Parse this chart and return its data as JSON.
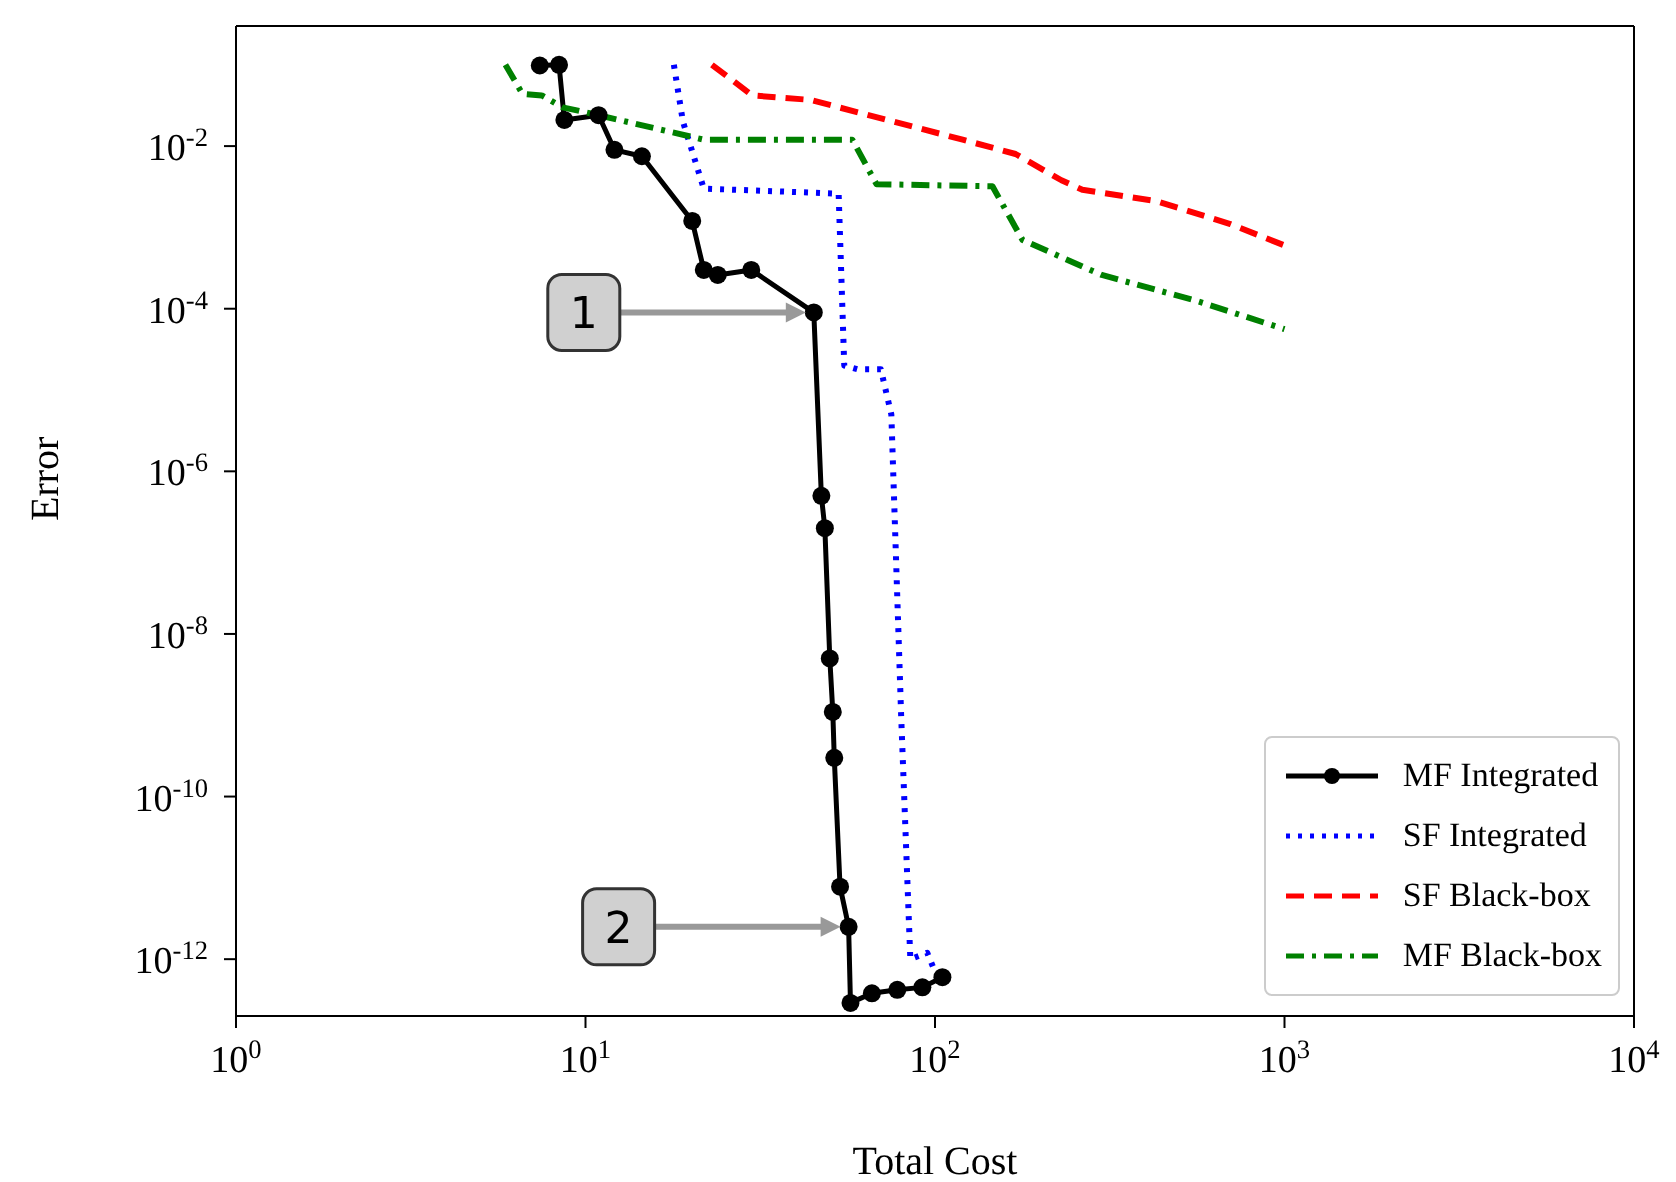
{
  "chart_data": {
    "type": "line",
    "xlabel": "Total Cost",
    "ylabel": "Error",
    "log": "xy",
    "grid": false,
    "legend": "bottom right",
    "xlim": [
      1,
      10000
    ],
    "ylim": [
      2e-13,
      0.3
    ],
    "xticks": [
      {
        "value": 1,
        "label": "10$^{0}$"
      },
      {
        "value": 10,
        "label": "10$^{1}$"
      },
      {
        "value": 100,
        "label": "10$^{2}$"
      },
      {
        "value": 1000,
        "label": "10$^{3}$"
      },
      {
        "value": 10000,
        "label": "10$^{4}$"
      }
    ],
    "yticks": [
      {
        "value": 1e-12,
        "label": "10$^{-12}$"
      },
      {
        "value": 1e-10,
        "label": "10$^{-10}$"
      },
      {
        "value": 1e-08,
        "label": "10$^{-8}$"
      },
      {
        "value": 1e-06,
        "label": "10$^{-6}$"
      },
      {
        "value": 0.0001,
        "label": "10$^{-4}$"
      },
      {
        "value": 0.01,
        "label": "10$^{-2}$"
      }
    ],
    "series": [
      {
        "name": "MF Integrated",
        "color": "#000000",
        "line_style": "solid",
        "marker": "circle",
        "x": [
          7.4,
          8.4,
          8.7,
          10.9,
          12.1,
          14.5,
          20.2,
          21.8,
          23.9,
          29.8,
          45,
          47.3,
          48.4,
          50,
          51,
          51.5,
          53.5,
          56.6,
          57.3,
          66,
          78,
          92,
          105
        ],
        "values": [
          0.098,
          0.1,
          0.021,
          0.024,
          0.009,
          0.0075,
          0.0012,
          0.0003,
          0.00026,
          0.0003,
          9e-05,
          5e-07,
          2e-07,
          5e-09,
          1.1e-09,
          3e-10,
          7.8e-12,
          2.5e-12,
          2.9e-13,
          3.8e-13,
          4.2e-13,
          4.5e-13,
          6e-13
        ]
      },
      {
        "name": "SF Integrated",
        "color": "#0000ff",
        "line_style": "dotted",
        "marker": "none",
        "x": [
          17.9,
          19,
          21.8,
          53,
          55,
          60,
          70,
          75,
          80,
          85,
          95,
          100
        ],
        "values": [
          0.1,
          0.02,
          0.003,
          0.0026,
          2e-05,
          1.8e-05,
          1.8e-05,
          5e-06,
          1e-09,
          1e-12,
          1.2e-12,
          7e-13
        ]
      },
      {
        "name": "SF Black-box",
        "color": "#ff0000",
        "line_style": "dashed",
        "marker": "none",
        "x": [
          23,
          30,
          44,
          120,
          170,
          230,
          264,
          430,
          700,
          1000
        ],
        "values": [
          0.1,
          0.042,
          0.037,
          0.012,
          0.008,
          0.0038,
          0.0029,
          0.0021,
          0.0011,
          0.0006
        ]
      },
      {
        "name": "MF Black-box",
        "color": "#008000",
        "line_style": "dashdot",
        "marker": "none",
        "x": [
          5.9,
          6.6,
          7.5,
          8.6,
          10.9,
          21.8,
          58,
          68,
          146,
          178,
          300,
          560,
          1000
        ],
        "values": [
          0.1,
          0.044,
          0.042,
          0.03,
          0.024,
          0.012,
          0.012,
          0.0034,
          0.0032,
          0.0007,
          0.00026,
          0.000125,
          5.6e-05
        ]
      }
    ],
    "annotations": [
      {
        "text": "1",
        "x": 45,
        "y": 9e-05
      },
      {
        "text": "2",
        "x": 56.6,
        "y": 2.5e-12
      }
    ]
  }
}
